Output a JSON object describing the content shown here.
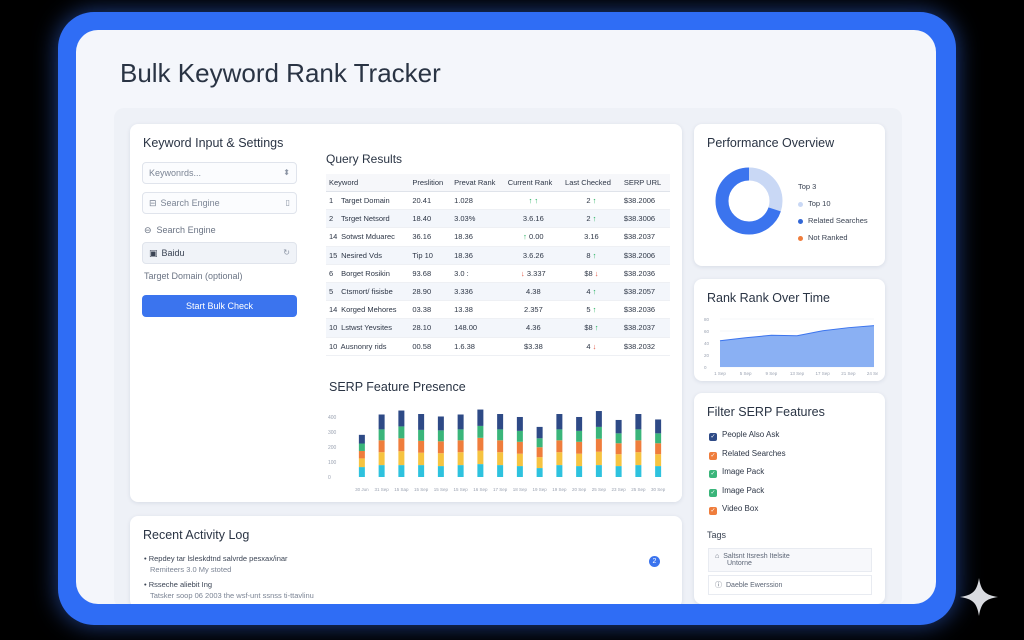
{
  "app": {
    "title": "Bulk Keyword Rank Tracker"
  },
  "settings": {
    "title": "Keyword Input & Settings",
    "keywords_placeholder": "Keywonrds...",
    "search_engine_field": "Search Engine",
    "search_engine_label": "Search Engine",
    "engine_selected": "Baidu",
    "target_domain": "Target Domain (optional)",
    "start_label": "Start Bulk Check"
  },
  "results": {
    "title": "Query Results",
    "columns": [
      "Keyword",
      "Preslition",
      "Prevat Rank",
      "Current Rank",
      "Last Checked",
      "SERP URL"
    ],
    "rows": [
      {
        "num": "1",
        "keyword": "Target Domain",
        "pos": "20.41",
        "prev": "1.028",
        "curr": "",
        "curr_arrow": "↑ ↑",
        "curr_dir": "up",
        "last": "2",
        "last_arrow": "↑",
        "last_dir": "up",
        "url": "$38.2006"
      },
      {
        "num": "2",
        "keyword": "Tsrget Netsord",
        "pos": "18.40",
        "prev": "3.03%",
        "curr": "3.6.16",
        "curr_arrow": "",
        "curr_dir": "neu",
        "last": "2",
        "last_arrow": "↑",
        "last_dir": "up",
        "url": "$38.3006"
      },
      {
        "num": "14",
        "keyword": "Sotwst Mduarec",
        "pos": "36.16",
        "prev": "18.36",
        "curr": "0.00",
        "curr_arrow": "↑",
        "curr_dir": "up",
        "last": "3.16",
        "last_arrow": "",
        "last_dir": "neu",
        "url": "$38.2037"
      },
      {
        "num": "15",
        "keyword": "Nesired Vds",
        "pos": "Tip 10",
        "prev": "18.36",
        "curr": "3.6.26",
        "curr_arrow": "",
        "curr_dir": "neu",
        "last": "8",
        "last_arrow": "↑",
        "last_dir": "up",
        "url": "$38.2006"
      },
      {
        "num": "6",
        "keyword": "Borget Rosikin",
        "pos": "93.68",
        "prev": "3.0 :",
        "curr": "3.337",
        "curr_arrow": "↓",
        "curr_dir": "down",
        "last": "$8",
        "last_arrow": "↓",
        "last_dir": "down",
        "url": "$38.2036"
      },
      {
        "num": "5",
        "keyword": "Ctsmort/ fisisbe",
        "pos": "28.90",
        "prev": "3.336",
        "curr": "4.38",
        "curr_arrow": "",
        "curr_dir": "neu",
        "last": "4",
        "last_arrow": "↑",
        "last_dir": "up",
        "url": "$38.2057"
      },
      {
        "num": "14",
        "keyword": "Korged Mehores",
        "pos": "03.38",
        "prev": "13.38",
        "curr": "2.357",
        "curr_arrow": "",
        "curr_dir": "neu",
        "last": "5",
        "last_arrow": "↑",
        "last_dir": "up",
        "url": "$38.2036"
      },
      {
        "num": "10",
        "keyword": "Lstwst Yevsites",
        "pos": "28.10",
        "prev": "148.00",
        "curr": "4.36",
        "curr_arrow": "",
        "curr_dir": "neu",
        "last": "$8",
        "last_arrow": "↑",
        "last_dir": "up",
        "url": "$38.2037"
      },
      {
        "num": "10",
        "keyword": "Ausnonry rids",
        "pos": "00.58",
        "prev": "1.6.38",
        "curr": "$3.38",
        "curr_arrow": "",
        "curr_dir": "neu",
        "last": "4",
        "last_arrow": "↓",
        "last_dir": "down",
        "url": "$38.2032"
      }
    ]
  },
  "serp": {
    "title": "SERP Feature Presence",
    "colors": [
      "#2ec2de",
      "#f6c340",
      "#ef7d3c",
      "#3ab57a",
      "#2e4a86"
    ],
    "chart_data": {
      "type": "bar",
      "stacked": true,
      "yticks": [
        "400",
        "300",
        "200",
        "100",
        "0"
      ],
      "categories": [
        "30 Jun",
        "31 Sep",
        "15 Sap",
        "15 Sep",
        "15 Sep",
        "15 Sep",
        "16 Sep",
        "17 Sep",
        "18 Sep",
        "19 Sep",
        "19 Sep",
        "20 Sep",
        "25 Sep",
        "23 Sep",
        "25 Sep",
        "30 Sep"
      ],
      "series": [
        {
          "values": [
            40,
            48,
            48,
            48,
            44,
            48,
            52,
            48,
            44,
            36,
            48,
            44,
            48,
            44,
            48,
            44
          ]
        },
        {
          "values": [
            35,
            52,
            56,
            50,
            52,
            52,
            54,
            52,
            50,
            44,
            52,
            50,
            54,
            48,
            52,
            48
          ]
        },
        {
          "values": [
            30,
            48,
            52,
            48,
            48,
            48,
            52,
            48,
            48,
            40,
            48,
            48,
            52,
            44,
            48,
            44
          ]
        },
        {
          "values": [
            30,
            44,
            48,
            44,
            44,
            44,
            48,
            44,
            44,
            36,
            44,
            44,
            48,
            40,
            44,
            40
          ]
        },
        {
          "values": [
            35,
            60,
            64,
            64,
            56,
            60,
            66,
            62,
            56,
            46,
            62,
            56,
            64,
            54,
            62,
            56
          ]
        }
      ]
    }
  },
  "log": {
    "title": "Recent Activity Log",
    "items": [
      {
        "line1": "Repdey tar lsleskdtnd salvrde pesxax/inar",
        "line2": "Remiteers 3.0 My stoted"
      },
      {
        "line1": "Rsseche aliebit Ing",
        "line2": "Tatsker soop 06 2003 the wsf-unt ssnss ti-ttavlinu"
      }
    ],
    "badge": "2"
  },
  "performance": {
    "title": "Performance Overview",
    "legend": [
      {
        "label": "Top 3",
        "color": ""
      },
      {
        "label": "Top 10",
        "color": "#c9d8f5"
      },
      {
        "label": "Related Searches",
        "color": "#3367d6"
      },
      {
        "label": "Not Ranked",
        "color": "#ef7d3c"
      }
    ],
    "chart_data": {
      "type": "pie",
      "slices": [
        {
          "label": "Top 10",
          "value": 30,
          "color": "#c9d8f5"
        },
        {
          "label": "Related Searches",
          "value": 70,
          "color": "#3b74ee"
        }
      ]
    }
  },
  "rank": {
    "title": "Rank Rank Over Time",
    "chart_data": {
      "type": "area",
      "x": [
        "1 Sep",
        "5 Sep",
        "9 Sep",
        "13 Sep",
        "17 Sep",
        "21 Sep",
        "24 Sep"
      ],
      "values": [
        52,
        58,
        63,
        62,
        72,
        78,
        82
      ],
      "ylim": [
        0,
        100
      ],
      "yticks": [
        "80",
        "60",
        "40",
        "20",
        "0"
      ]
    }
  },
  "filter": {
    "title": "Filter SERP Features",
    "items": [
      {
        "label": "People Also Ask",
        "color": "#2e4a86"
      },
      {
        "label": "Related Searches",
        "color": "#ef7d3c"
      },
      {
        "label": "Image Pack",
        "color": "#3ab57a"
      },
      {
        "label": "Image Pack",
        "color": "#3ab57a"
      },
      {
        "label": "Video Box",
        "color": "#ef7d3c"
      }
    ],
    "tags_label": "Tags",
    "tags": [
      {
        "line1": "Saltsnt Itsresh Itelsite",
        "line2": "Untorne"
      },
      {
        "line1": "Daeble Ewerssion",
        "line2": ""
      }
    ]
  }
}
